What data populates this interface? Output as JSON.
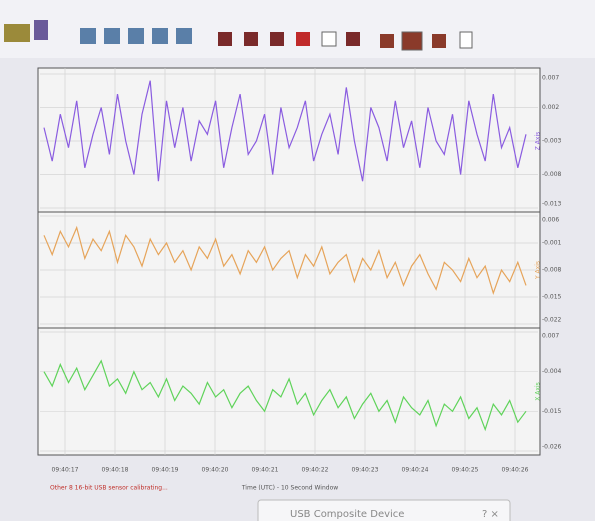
{
  "chart_data": [
    {
      "type": "line",
      "title": "Z Axis",
      "color": "#8a5ce0",
      "values": [
        -0.001,
        -0.006,
        0.001,
        -0.004,
        0.003,
        -0.007,
        -0.002,
        0.002,
        -0.005,
        0.004,
        -0.003,
        -0.008,
        0.001,
        0.006,
        -0.009,
        0.003,
        -0.004,
        0.002,
        -0.006,
        0.0,
        -0.002,
        0.003,
        -0.007,
        -0.001,
        0.004,
        -0.005,
        -0.003,
        0.001,
        -0.008,
        0.002,
        -0.004,
        -0.001,
        0.003,
        -0.006,
        -0.002,
        0.001,
        -0.005,
        0.005,
        -0.003,
        -0.009,
        0.002,
        -0.001,
        -0.006,
        0.003,
        -0.004,
        0.0,
        -0.007,
        0.002,
        -0.003,
        -0.005,
        0.001,
        -0.008,
        0.003,
        -0.002,
        -0.006,
        0.004,
        -0.004,
        -0.001,
        -0.007,
        -0.002
      ],
      "ylim": [
        -0.013,
        0.007
      ],
      "yticks": [
        0.007,
        0.002,
        -0.003,
        -0.008,
        -0.013
      ]
    },
    {
      "type": "line",
      "title": "Y Axis",
      "color": "#e6a45a",
      "values": [
        0.001,
        -0.004,
        0.002,
        -0.002,
        0.003,
        -0.005,
        0.0,
        -0.003,
        0.002,
        -0.006,
        0.001,
        -0.002,
        -0.007,
        0.0,
        -0.004,
        -0.001,
        -0.006,
        -0.003,
        -0.008,
        -0.002,
        -0.005,
        0.0,
        -0.007,
        -0.004,
        -0.009,
        -0.003,
        -0.006,
        -0.002,
        -0.008,
        -0.005,
        -0.003,
        -0.01,
        -0.004,
        -0.007,
        -0.002,
        -0.009,
        -0.006,
        -0.004,
        -0.011,
        -0.005,
        -0.008,
        -0.003,
        -0.01,
        -0.006,
        -0.012,
        -0.007,
        -0.004,
        -0.009,
        -0.013,
        -0.006,
        -0.008,
        -0.011,
        -0.005,
        -0.01,
        -0.007,
        -0.014,
        -0.008,
        -0.011,
        -0.006,
        -0.012
      ],
      "ylim": [
        -0.022,
        0.006
      ],
      "yticks": [
        0.006,
        -0.001,
        -0.008,
        -0.015,
        -0.022
      ]
    },
    {
      "type": "line",
      "title": "X Axis",
      "color": "#5fd35a",
      "values": [
        -0.004,
        -0.008,
        -0.002,
        -0.007,
        -0.003,
        -0.009,
        -0.005,
        -0.001,
        -0.008,
        -0.006,
        -0.01,
        -0.004,
        -0.009,
        -0.007,
        -0.011,
        -0.006,
        -0.012,
        -0.008,
        -0.01,
        -0.013,
        -0.007,
        -0.011,
        -0.009,
        -0.014,
        -0.01,
        -0.008,
        -0.012,
        -0.015,
        -0.009,
        -0.011,
        -0.006,
        -0.013,
        -0.01,
        -0.016,
        -0.012,
        -0.009,
        -0.014,
        -0.011,
        -0.017,
        -0.013,
        -0.01,
        -0.015,
        -0.012,
        -0.018,
        -0.011,
        -0.014,
        -0.016,
        -0.012,
        -0.019,
        -0.013,
        -0.015,
        -0.011,
        -0.017,
        -0.014,
        -0.02,
        -0.013,
        -0.016,
        -0.012,
        -0.018,
        -0.015
      ],
      "ylim": [
        -0.026,
        0.007
      ],
      "yticks": [
        0.007,
        -0.004,
        -0.015,
        -0.026
      ]
    }
  ],
  "time_axis": {
    "ticks": [
      "09:40:17",
      "09:40:18",
      "09:40:19",
      "09:40:20",
      "09:40:21",
      "09:40:22",
      "09:40:23",
      "09:40:24",
      "09:40:25",
      "09:40:26"
    ],
    "label": "Time (UTC) - 10 Second Window"
  },
  "status": "Other 8 16-bit USB sensor calibrating...",
  "dialog_title": "USB Composite Device"
}
